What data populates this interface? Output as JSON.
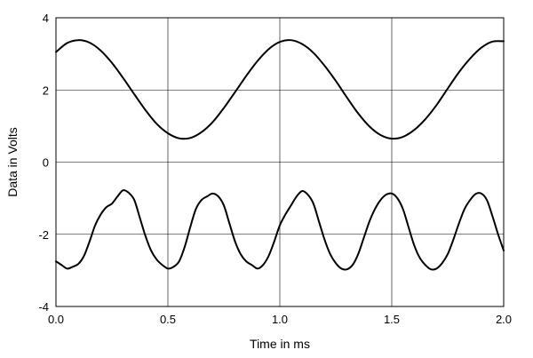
{
  "chart_data": {
    "type": "line",
    "title": "",
    "xlabel": "Time in ms",
    "ylabel": "Data in Volts",
    "xlim": [
      0.0,
      2.0
    ],
    "ylim": [
      -4,
      4
    ],
    "xticks": [
      0.0,
      0.5,
      1.0,
      1.5,
      2.0
    ],
    "xtick_labels": [
      "0.0",
      "0.5",
      "1.0",
      "1.5",
      "2.0"
    ],
    "yticks": [
      -4,
      -2,
      0,
      2,
      4
    ],
    "ytick_labels": [
      "-4",
      "-2",
      "0",
      "2",
      "4"
    ],
    "grid": true,
    "legend": "none",
    "series": [
      {
        "color": "#000000",
        "x": [
          0.0,
          0.05,
          0.1,
          0.15,
          0.2,
          0.25,
          0.3,
          0.35,
          0.4,
          0.45,
          0.5,
          0.55,
          0.6,
          0.65,
          0.7,
          0.75,
          0.8,
          0.85,
          0.9,
          0.95,
          1.0,
          1.05,
          1.1,
          1.15,
          1.2,
          1.25,
          1.3,
          1.35,
          1.4,
          1.45,
          1.5,
          1.55,
          1.6,
          1.65,
          1.7,
          1.75,
          1.8,
          1.85,
          1.9,
          1.95,
          2.0
        ],
        "values": [
          3.05,
          3.3,
          3.38,
          3.31,
          3.09,
          2.75,
          2.33,
          1.88,
          1.44,
          1.06,
          0.8,
          0.66,
          0.67,
          0.83,
          1.11,
          1.5,
          1.94,
          2.39,
          2.8,
          3.13,
          3.33,
          3.38,
          3.27,
          3.03,
          2.67,
          2.25,
          1.79,
          1.35,
          0.99,
          0.75,
          0.65,
          0.7,
          0.89,
          1.19,
          1.58,
          2.04,
          2.49,
          2.87,
          3.17,
          3.34,
          3.35
        ]
      },
      {
        "color": "#000000",
        "x": [
          0.0,
          0.025,
          0.05,
          0.075,
          0.1,
          0.125,
          0.15,
          0.175,
          0.2,
          0.225,
          0.25,
          0.275,
          0.3,
          0.325,
          0.35,
          0.375,
          0.4,
          0.425,
          0.45,
          0.475,
          0.5,
          0.525,
          0.55,
          0.575,
          0.6,
          0.625,
          0.65,
          0.675,
          0.7,
          0.725,
          0.75,
          0.775,
          0.8,
          0.825,
          0.85,
          0.875,
          0.9,
          0.925,
          0.95,
          0.975,
          1.0,
          1.025,
          1.05,
          1.075,
          1.1,
          1.125,
          1.15,
          1.175,
          1.2,
          1.225,
          1.25,
          1.275,
          1.3,
          1.325,
          1.35,
          1.375,
          1.4,
          1.425,
          1.45,
          1.475,
          1.5,
          1.525,
          1.55,
          1.575,
          1.6,
          1.625,
          1.65,
          1.675,
          1.7,
          1.725,
          1.75,
          1.775,
          1.8,
          1.825,
          1.85,
          1.875,
          1.9,
          1.925,
          1.95,
          1.975,
          2.0
        ],
        "values": [
          -2.75,
          -2.85,
          -2.95,
          -2.9,
          -2.82,
          -2.6,
          -2.2,
          -1.75,
          -1.45,
          -1.25,
          -1.15,
          -0.95,
          -0.78,
          -0.85,
          -1.05,
          -1.55,
          -2.05,
          -2.45,
          -2.7,
          -2.85,
          -2.95,
          -2.9,
          -2.75,
          -2.35,
          -1.8,
          -1.3,
          -1.05,
          -0.95,
          -0.87,
          -0.95,
          -1.2,
          -1.7,
          -2.2,
          -2.55,
          -2.75,
          -2.85,
          -2.95,
          -2.85,
          -2.6,
          -2.2,
          -1.75,
          -1.45,
          -1.2,
          -0.95,
          -0.8,
          -0.9,
          -1.15,
          -1.65,
          -2.15,
          -2.55,
          -2.8,
          -2.95,
          -2.97,
          -2.85,
          -2.55,
          -2.1,
          -1.65,
          -1.3,
          -1.05,
          -0.9,
          -0.87,
          -1.0,
          -1.3,
          -1.8,
          -2.3,
          -2.65,
          -2.85,
          -2.97,
          -2.95,
          -2.8,
          -2.55,
          -2.15,
          -1.7,
          -1.3,
          -1.05,
          -0.88,
          -0.87,
          -1.05,
          -1.5,
          -2.0,
          -2.45
        ]
      }
    ]
  }
}
